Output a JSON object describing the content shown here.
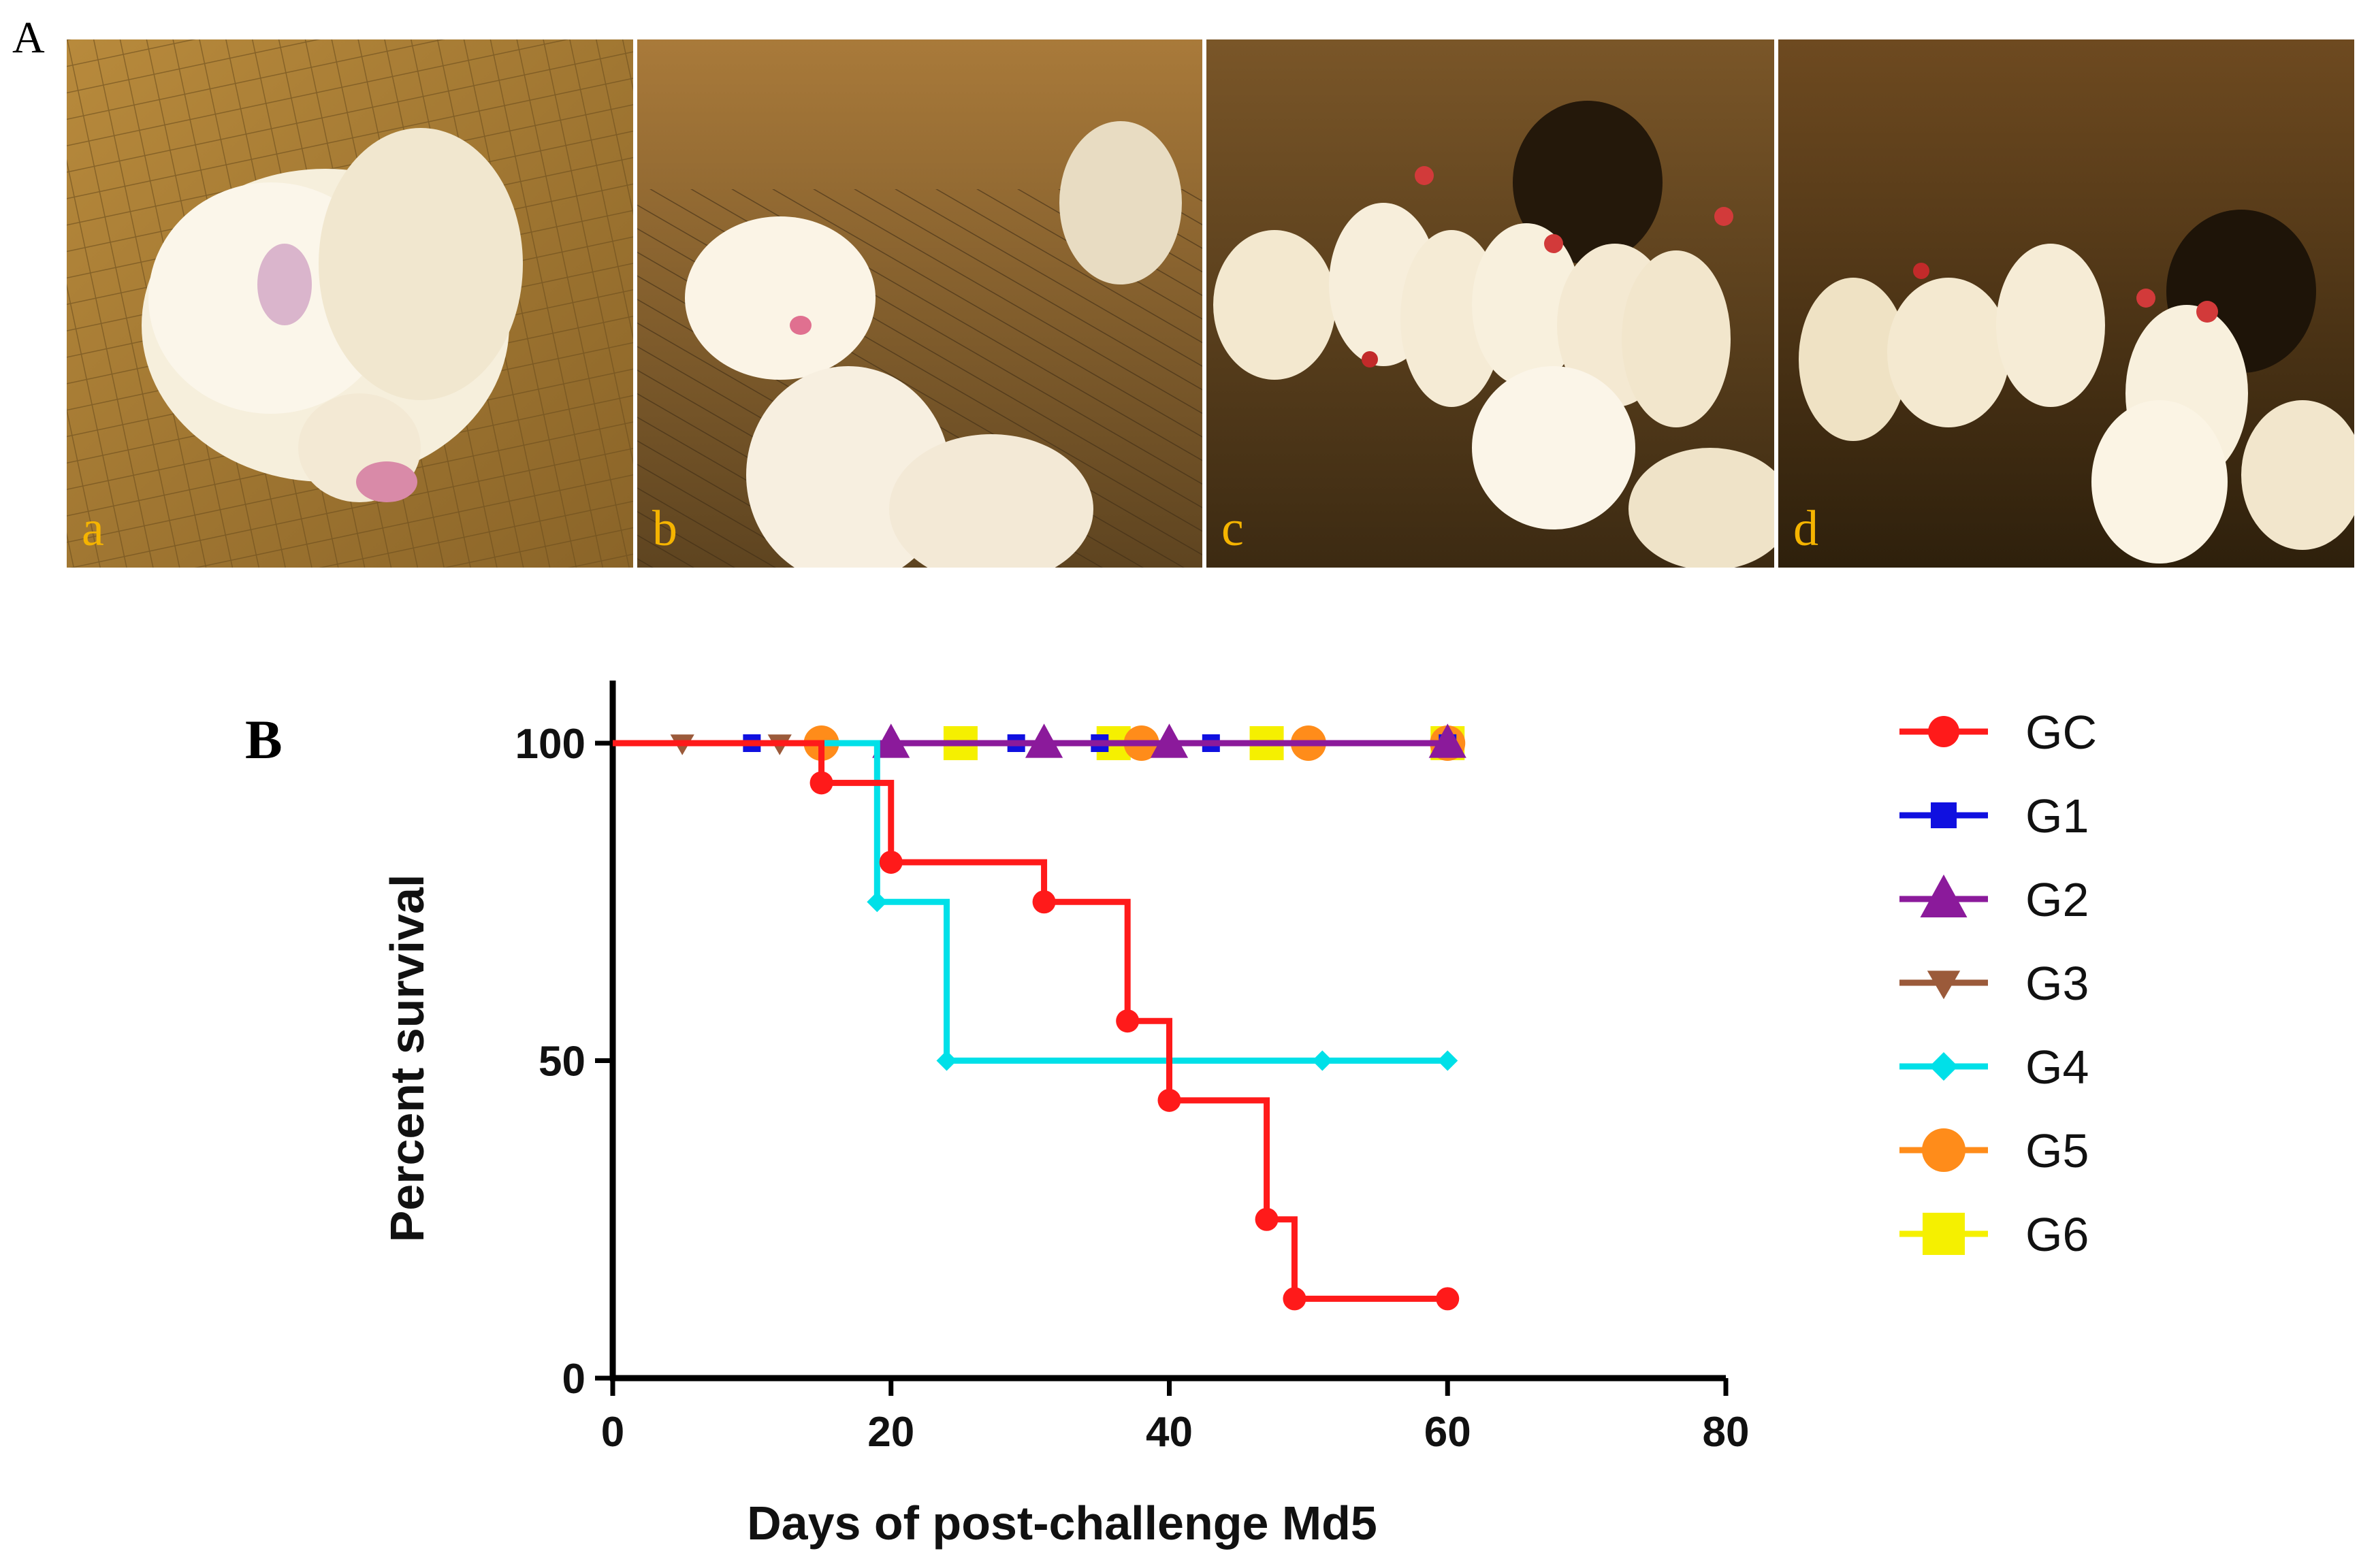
{
  "figure": {
    "panel_a_label": "A",
    "panel_b_label": "B",
    "photos": [
      {
        "label": "a"
      },
      {
        "label": "b"
      },
      {
        "label": "c"
      },
      {
        "label": "d"
      }
    ]
  },
  "chart_data": {
    "type": "line",
    "xlabel": "Days of post-challenge Md5",
    "ylabel": "Percent survival",
    "xlim": [
      0,
      80
    ],
    "ylim": [
      0,
      100
    ],
    "xticks": [
      0,
      20,
      40,
      60,
      80
    ],
    "yticks": [
      0,
      50,
      100
    ],
    "grid": false,
    "legend_position": "right",
    "step": true,
    "series": [
      {
        "name": "GC",
        "color": "#ff1a1a",
        "marker": "circle",
        "x": [
          0,
          15,
          20,
          31,
          37,
          40,
          47,
          49,
          60
        ],
        "y": [
          100,
          93.75,
          81.25,
          75,
          56.25,
          43.75,
          25,
          12.5,
          12.5
        ]
      },
      {
        "name": "G1",
        "color": "#1010e0",
        "marker": "square",
        "x": [
          0,
          10,
          29,
          35,
          43,
          60
        ],
        "y": [
          100,
          100,
          100,
          100,
          100,
          100
        ]
      },
      {
        "name": "G2",
        "color": "#8b1a9b",
        "marker": "triangle-up",
        "x": [
          0,
          20,
          31,
          40,
          60
        ],
        "y": [
          100,
          100,
          100,
          100,
          100
        ]
      },
      {
        "name": "G3",
        "color": "#9b5a3a",
        "marker": "triangle-down",
        "x": [
          0,
          5,
          12
        ],
        "y": [
          100,
          100,
          100
        ]
      },
      {
        "name": "G4",
        "color": "#00e0e8",
        "marker": "diamond",
        "x": [
          0,
          19,
          24,
          51,
          60
        ],
        "y": [
          100,
          75,
          50,
          50,
          50
        ]
      },
      {
        "name": "G5",
        "color": "#ff8c1a",
        "marker": "circle",
        "x": [
          0,
          15,
          38,
          50,
          60
        ],
        "y": [
          100,
          100,
          100,
          100,
          100
        ]
      },
      {
        "name": "G6",
        "color": "#f5f000",
        "marker": "square",
        "x": [
          0,
          25,
          36,
          47,
          60
        ],
        "y": [
          100,
          100,
          100,
          100,
          100
        ]
      }
    ]
  }
}
